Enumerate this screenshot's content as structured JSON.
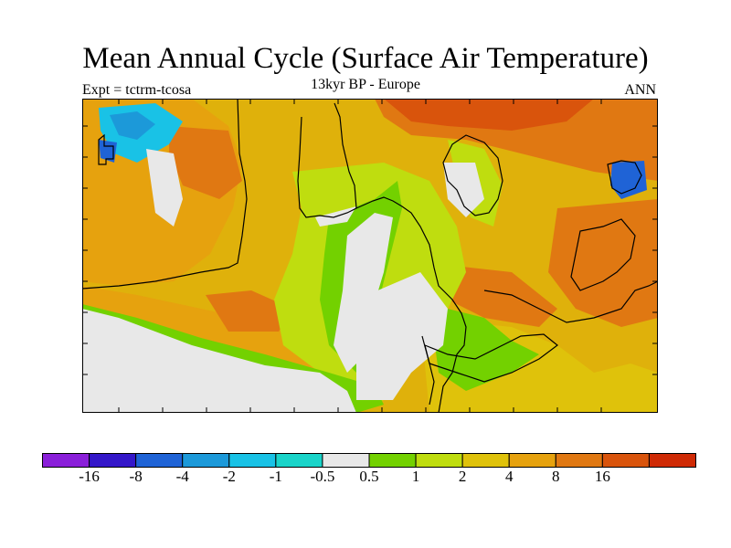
{
  "title": "Mean Annual Cycle (Surface Air Temperature)",
  "subtitle_left": "Expt = tctrm-tcosa",
  "subtitle_center": "13kyr BP - Europe",
  "subtitle_right": "ANN",
  "colorbar": {
    "colors": [
      "#8a1fd9",
      "#3417c9",
      "#1f63d6",
      "#1c99d9",
      "#19c2e6",
      "#1ad4c9",
      "#e8e8e8",
      "#73d100",
      "#bfdd0f",
      "#dfc20b",
      "#e6a20e",
      "#e07812",
      "#d9540c",
      "#cf2a05"
    ],
    "labels": [
      "-16",
      "-8",
      "-4",
      "-2",
      "-1",
      "-0.5",
      "0.5",
      "1",
      "2",
      "4",
      "8",
      "16"
    ]
  }
}
